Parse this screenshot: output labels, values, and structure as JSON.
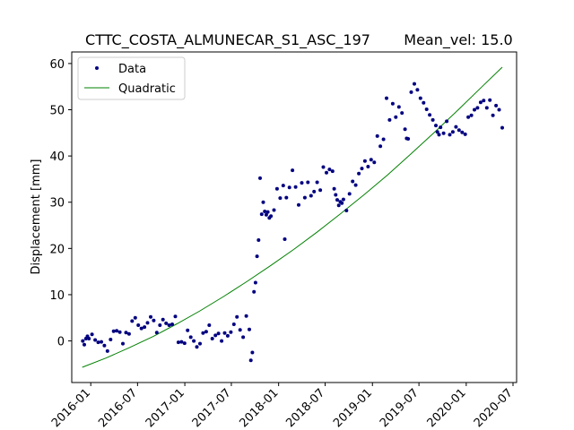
{
  "chart_data": {
    "type": "scatter",
    "title": "CTTC_COSTA_ALMUNECAR_S1_ASC_197",
    "subtitle": "Mean_vel: 15.0",
    "xlabel": "",
    "ylabel": "Displacement [mm]",
    "xlim": [
      "2015-10-19",
      "2020-07-15"
    ],
    "ylim": [
      -9,
      62.5
    ],
    "x_ticks": [
      "2016-01",
      "2016-07",
      "2017-01",
      "2017-07",
      "2018-01",
      "2018-07",
      "2019-01",
      "2019-07",
      "2020-01",
      "2020-07"
    ],
    "y_ticks": [
      0,
      10,
      20,
      30,
      40,
      50,
      60
    ],
    "grid": false,
    "legend": {
      "position": "top-left",
      "entries": [
        "Data",
        "Quadratic"
      ]
    },
    "colors": {
      "data": "#000080",
      "fit": "#008000"
    },
    "series": [
      {
        "name": "Data",
        "kind": "points",
        "points": [
          [
            "2015-12-01",
            0.0
          ],
          [
            "2015-12-07",
            -0.8
          ],
          [
            "2015-12-13",
            0.5
          ],
          [
            "2015-12-19",
            1.0
          ],
          [
            "2015-12-25",
            0.5
          ],
          [
            "2016-01-06",
            1.4
          ],
          [
            "2016-01-18",
            0.2
          ],
          [
            "2016-01-30",
            -0.3
          ],
          [
            "2016-02-11",
            -0.2
          ],
          [
            "2016-02-23",
            -1.0
          ],
          [
            "2016-03-06",
            -2.2
          ],
          [
            "2016-03-18",
            0.3
          ],
          [
            "2016-03-30",
            2.1
          ],
          [
            "2016-04-11",
            2.2
          ],
          [
            "2016-04-23",
            1.9
          ],
          [
            "2016-05-05",
            -0.6
          ],
          [
            "2016-05-17",
            1.8
          ],
          [
            "2016-05-29",
            1.5
          ],
          [
            "2016-06-10",
            4.3
          ],
          [
            "2016-06-22",
            5.0
          ],
          [
            "2016-07-04",
            3.4
          ],
          [
            "2016-07-16",
            2.7
          ],
          [
            "2016-07-28",
            3.0
          ],
          [
            "2016-08-09",
            3.9
          ],
          [
            "2016-08-21",
            5.2
          ],
          [
            "2016-09-02",
            4.4
          ],
          [
            "2016-09-14",
            1.8
          ],
          [
            "2016-09-26",
            3.4
          ],
          [
            "2016-10-08",
            4.6
          ],
          [
            "2016-10-20",
            3.8
          ],
          [
            "2016-11-01",
            3.4
          ],
          [
            "2016-11-13",
            3.6
          ],
          [
            "2016-11-25",
            5.3
          ],
          [
            "2016-12-07",
            -0.3
          ],
          [
            "2016-12-19",
            -0.2
          ],
          [
            "2016-12-31",
            -0.5
          ],
          [
            "2017-01-12",
            2.3
          ],
          [
            "2017-01-24",
            0.8
          ],
          [
            "2017-02-05",
            0.0
          ],
          [
            "2017-02-17",
            -1.3
          ],
          [
            "2017-03-01",
            -0.6
          ],
          [
            "2017-03-13",
            1.7
          ],
          [
            "2017-03-25",
            2.0
          ],
          [
            "2017-04-06",
            3.4
          ],
          [
            "2017-04-18",
            0.5
          ],
          [
            "2017-04-30",
            1.2
          ],
          [
            "2017-05-12",
            1.6
          ],
          [
            "2017-05-24",
            0.0
          ],
          [
            "2017-06-05",
            1.7
          ],
          [
            "2017-06-17",
            1.1
          ],
          [
            "2017-06-29",
            1.9
          ],
          [
            "2017-07-11",
            3.6
          ],
          [
            "2017-07-23",
            5.2
          ],
          [
            "2017-08-04",
            2.4
          ],
          [
            "2017-08-16",
            0.8
          ],
          [
            "2017-08-28",
            5.4
          ],
          [
            "2017-09-09",
            2.5
          ],
          [
            "2017-09-15",
            -4.2
          ],
          [
            "2017-09-21",
            -2.5
          ],
          [
            "2017-09-27",
            10.6
          ],
          [
            "2017-10-03",
            12.6
          ],
          [
            "2017-10-09",
            18.3
          ],
          [
            "2017-10-15",
            21.8
          ],
          [
            "2017-10-21",
            35.2
          ],
          [
            "2017-10-27",
            27.4
          ],
          [
            "2017-11-02",
            30.0
          ],
          [
            "2017-11-08",
            28.0
          ],
          [
            "2017-11-14",
            27.3
          ],
          [
            "2017-11-20",
            27.9
          ],
          [
            "2017-11-26",
            26.6
          ],
          [
            "2017-12-02",
            27.0
          ],
          [
            "2017-12-14",
            28.3
          ],
          [
            "2017-12-26",
            32.9
          ],
          [
            "2018-01-07",
            30.9
          ],
          [
            "2018-01-19",
            33.6
          ],
          [
            "2018-01-25",
            22.0
          ],
          [
            "2018-01-31",
            31.0
          ],
          [
            "2018-02-12",
            33.2
          ],
          [
            "2018-02-24",
            36.9
          ],
          [
            "2018-03-08",
            33.3
          ],
          [
            "2018-03-20",
            29.4
          ],
          [
            "2018-04-01",
            34.2
          ],
          [
            "2018-04-13",
            31.0
          ],
          [
            "2018-04-25",
            34.3
          ],
          [
            "2018-05-07",
            31.4
          ],
          [
            "2018-05-19",
            32.3
          ],
          [
            "2018-05-31",
            34.3
          ],
          [
            "2018-06-12",
            32.6
          ],
          [
            "2018-06-24",
            37.6
          ],
          [
            "2018-07-06",
            36.4
          ],
          [
            "2018-07-18",
            37.1
          ],
          [
            "2018-07-30",
            36.7
          ],
          [
            "2018-08-05",
            32.9
          ],
          [
            "2018-08-11",
            31.6
          ],
          [
            "2018-08-17",
            30.5
          ],
          [
            "2018-08-23",
            29.3
          ],
          [
            "2018-08-29",
            30.1
          ],
          [
            "2018-09-04",
            29.8
          ],
          [
            "2018-09-10",
            30.6
          ],
          [
            "2018-09-22",
            28.2
          ],
          [
            "2018-10-04",
            31.8
          ],
          [
            "2018-10-16",
            34.5
          ],
          [
            "2018-10-28",
            33.7
          ],
          [
            "2018-11-09",
            36.2
          ],
          [
            "2018-11-21",
            37.3
          ],
          [
            "2018-12-03",
            38.9
          ],
          [
            "2018-12-15",
            37.7
          ],
          [
            "2018-12-27",
            39.2
          ],
          [
            "2019-01-08",
            38.6
          ],
          [
            "2019-01-20",
            44.3
          ],
          [
            "2019-02-01",
            42.1
          ],
          [
            "2019-02-13",
            43.6
          ],
          [
            "2019-02-25",
            52.5
          ],
          [
            "2019-03-09",
            47.8
          ],
          [
            "2019-03-21",
            51.3
          ],
          [
            "2019-04-02",
            48.4
          ],
          [
            "2019-04-14",
            50.6
          ],
          [
            "2019-04-26",
            49.3
          ],
          [
            "2019-05-08",
            45.8
          ],
          [
            "2019-05-14",
            43.8
          ],
          [
            "2019-05-20",
            43.7
          ],
          [
            "2019-06-01",
            53.8
          ],
          [
            "2019-06-13",
            55.6
          ],
          [
            "2019-06-25",
            54.3
          ],
          [
            "2019-07-07",
            52.5
          ],
          [
            "2019-07-19",
            51.5
          ],
          [
            "2019-07-31",
            50.1
          ],
          [
            "2019-08-12",
            48.9
          ],
          [
            "2019-08-24",
            47.8
          ],
          [
            "2019-09-05",
            46.6
          ],
          [
            "2019-09-11",
            45.2
          ],
          [
            "2019-09-17",
            44.6
          ],
          [
            "2019-09-23",
            46.2
          ],
          [
            "2019-10-05",
            44.9
          ],
          [
            "2019-10-17",
            47.5
          ],
          [
            "2019-10-29",
            44.6
          ],
          [
            "2019-11-10",
            45.2
          ],
          [
            "2019-11-22",
            46.3
          ],
          [
            "2019-12-04",
            45.6
          ],
          [
            "2019-12-16",
            45.1
          ],
          [
            "2019-12-28",
            44.7
          ],
          [
            "2020-01-09",
            48.4
          ],
          [
            "2020-01-21",
            48.8
          ],
          [
            "2020-02-02",
            50.0
          ],
          [
            "2020-02-14",
            50.4
          ],
          [
            "2020-02-26",
            51.6
          ],
          [
            "2020-03-09",
            52.0
          ],
          [
            "2020-03-21",
            50.4
          ],
          [
            "2020-04-02",
            52.1
          ],
          [
            "2020-04-14",
            48.8
          ],
          [
            "2020-04-26",
            50.9
          ],
          [
            "2020-05-08",
            50.0
          ],
          [
            "2020-05-20",
            46.1
          ]
        ]
      },
      {
        "name": "Quadratic",
        "kind": "line",
        "points": [
          [
            "2015-11-29",
            -5.7
          ],
          [
            "2016-03-01",
            -3.7
          ],
          [
            "2016-06-01",
            -1.4
          ],
          [
            "2016-09-01",
            1.0
          ],
          [
            "2016-12-01",
            3.7
          ],
          [
            "2017-03-01",
            6.5
          ],
          [
            "2017-06-01",
            9.6
          ],
          [
            "2017-09-01",
            12.9
          ],
          [
            "2017-12-01",
            16.3
          ],
          [
            "2018-03-01",
            19.8
          ],
          [
            "2018-06-01",
            23.6
          ],
          [
            "2018-09-01",
            27.6
          ],
          [
            "2018-12-01",
            31.7
          ],
          [
            "2019-03-01",
            35.9
          ],
          [
            "2019-06-01",
            40.5
          ],
          [
            "2019-09-01",
            45.2
          ],
          [
            "2019-12-01",
            50.0
          ],
          [
            "2020-03-01",
            54.9
          ],
          [
            "2020-05-20",
            59.2
          ]
        ]
      }
    ]
  }
}
